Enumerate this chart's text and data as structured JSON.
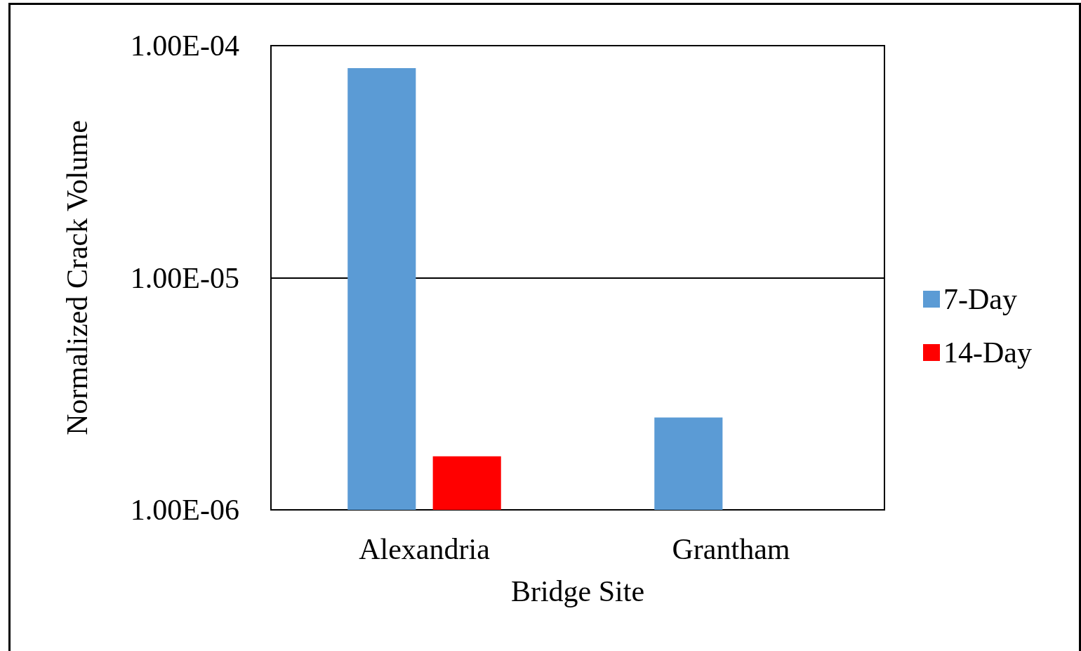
{
  "chart_data": {
    "type": "bar",
    "xlabel": "Bridge Site",
    "ylabel": "Normalized Crack Volume",
    "categories": [
      "Alexandria",
      "Grantham"
    ],
    "series": [
      {
        "name": "7-Day",
        "color": "#5b9bd5",
        "values": [
          8e-05,
          2.5e-06
        ]
      },
      {
        "name": "14-Day",
        "color": "#ff0000",
        "values": [
          1.7e-06,
          null
        ]
      }
    ],
    "log": "y",
    "ylim": [
      1e-06,
      0.0001
    ],
    "yticks": [
      {
        "value": 1e-06,
        "label": "1.00E-06"
      },
      {
        "value": 1e-05,
        "label": "1.00E-05"
      },
      {
        "value": 0.0001,
        "label": "1.00E-04"
      }
    ],
    "grid": "y",
    "legend": "right"
  }
}
